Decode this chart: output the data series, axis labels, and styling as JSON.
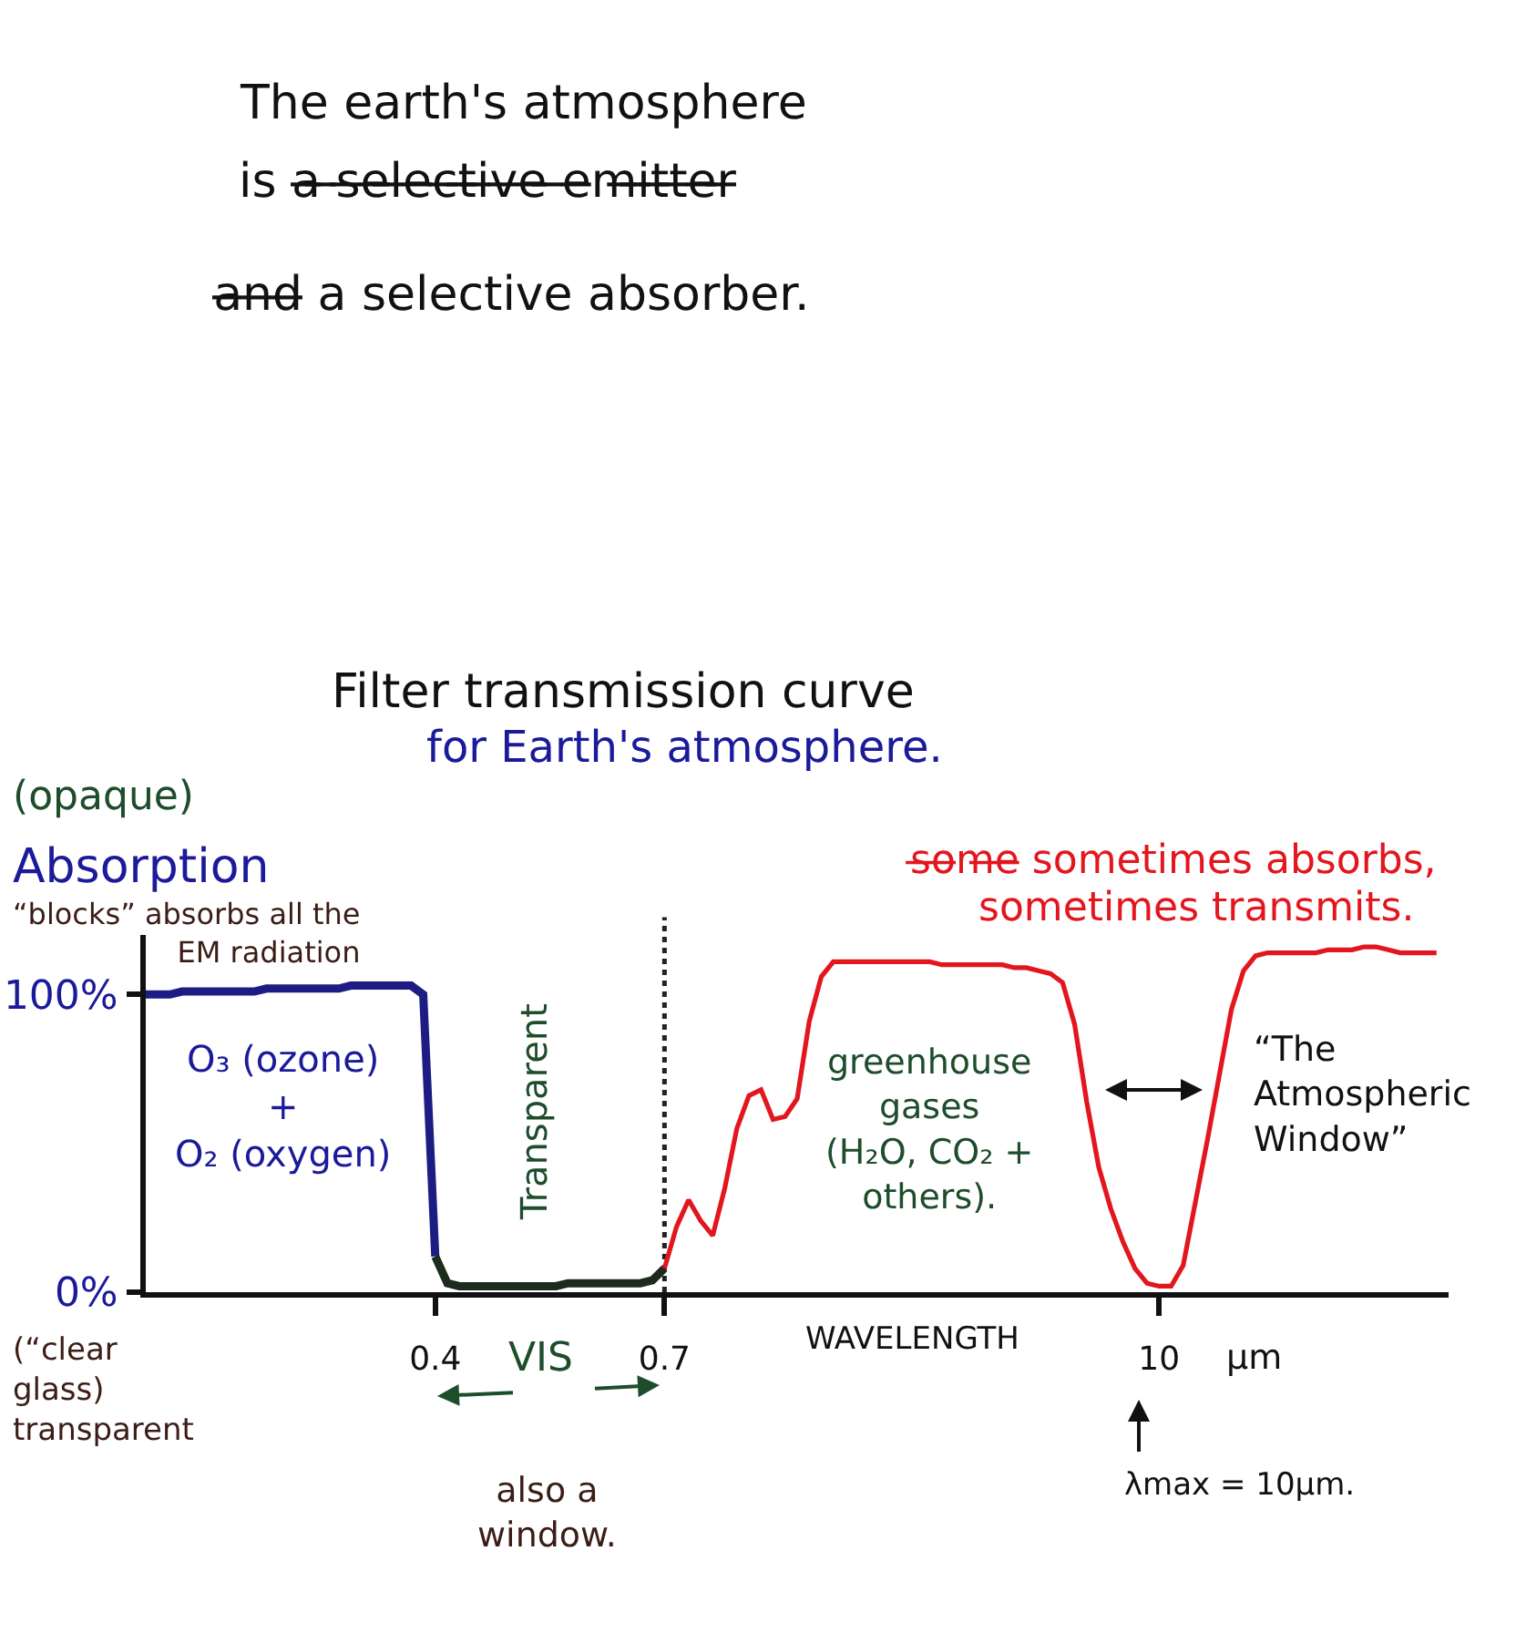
{
  "chart_data": {
    "type": "line",
    "title": "Filter transmission curve",
    "subtitle": "for Earth's atmosphere.",
    "xlabel": "WAVELENGTH",
    "ylabel": "Absorption",
    "annotations": [
      "The earth's atmosphere",
      "is a̶ ̶s̶e̶l̶e̶c̶t̶i̶v̶e̶ ̶e̶m̶i̶t̶t̶e̶r̶",
      "a̶n̶d̶ a selective absorber.",
      "(opaque)",
      "“blocks” absorbs all the\nEM radiation",
      "(“clear\nglass)\ntransparent",
      "O₃ (ozone)\n+\nO₂ (oxygen)",
      "Transparent",
      "VIS",
      "also a\nwindow.",
      "µm",
      "λmax = 10µm.",
      "s̶o̶m̶e̶ sometimes absorbs,",
      "sometimes transmits.",
      "greenhouse\ngases\n(H₂O, CO₂ +\nothers).",
      "“The\nAtmospheric\nWindow”"
    ],
    "categories": [
      null,
      null,
      null,
      null,
      null,
      null,
      null,
      null,
      null,
      null,
      null,
      null,
      null,
      null,
      null,
      null,
      null,
      null,
      null,
      null,
      null,
      null,
      null,
      null,
      "0.4",
      null,
      null,
      null,
      null,
      null,
      null,
      null,
      null,
      null,
      null,
      null,
      null,
      null,
      null,
      null,
      null,
      null,
      null,
      "0.7",
      null,
      null,
      null,
      null,
      null,
      null,
      null,
      null,
      null,
      null,
      null,
      null,
      null,
      null,
      null,
      null,
      null,
      null,
      null,
      null,
      null,
      null,
      null,
      null,
      null,
      null,
      null,
      null,
      null,
      null,
      null,
      null,
      null,
      null,
      null,
      null,
      null,
      null,
      null,
      null,
      "10",
      null,
      null,
      null,
      null,
      null,
      null,
      null,
      null,
      null,
      null,
      null,
      null,
      null,
      null,
      null,
      null,
      null,
      null,
      null,
      null,
      null,
      null,
      null
    ],
    "series": [
      {
        "color": "#1c1c84",
        "values": [
          100,
          100,
          100,
          101,
          101,
          101,
          101,
          101,
          101,
          101,
          102,
          102,
          102,
          102,
          102,
          102,
          102,
          103,
          103,
          103,
          103,
          103,
          103,
          100,
          12,
          null,
          null,
          null,
          null,
          null,
          null,
          null,
          null,
          null,
          null,
          null,
          null,
          null,
          null,
          null,
          null,
          null,
          null,
          null,
          null,
          null,
          null,
          null,
          null,
          null,
          null,
          null,
          null,
          null,
          null,
          null,
          null,
          null,
          null,
          null,
          null,
          null,
          null,
          null,
          null,
          null,
          null,
          null,
          null,
          null,
          null,
          null,
          null,
          null,
          null,
          null,
          null,
          null,
          null,
          null,
          null,
          null,
          null,
          null,
          null,
          null,
          null,
          null,
          null,
          null,
          null,
          null,
          null,
          null,
          null,
          null,
          null,
          null,
          null,
          null,
          null,
          null,
          null,
          null,
          null,
          null,
          null,
          null
        ]
      },
      {
        "color": "#1c2b1c",
        "values": [
          null,
          null,
          null,
          null,
          null,
          null,
          null,
          null,
          null,
          null,
          null,
          null,
          null,
          null,
          null,
          null,
          null,
          null,
          null,
          null,
          null,
          null,
          null,
          null,
          12,
          3,
          2,
          2,
          2,
          2,
          2,
          2,
          2,
          2,
          2,
          3,
          3,
          3,
          3,
          3,
          3,
          3,
          4,
          8,
          null,
          null,
          null,
          null,
          null,
          null,
          null,
          null,
          null,
          null,
          null,
          null,
          null,
          null,
          null,
          null,
          null,
          null,
          null,
          null,
          null,
          null,
          null,
          null,
          null,
          null,
          null,
          null,
          null,
          null,
          null,
          null,
          null,
          null,
          null,
          null,
          null,
          null,
          null,
          null,
          null,
          null,
          null,
          null,
          null,
          null,
          null,
          null,
          null,
          null,
          null,
          null,
          null,
          null,
          null,
          null,
          null,
          null,
          null,
          null,
          null,
          null,
          null,
          null
        ]
      },
      {
        "color": "#e3161e",
        "values": [
          null,
          null,
          null,
          null,
          null,
          null,
          null,
          null,
          null,
          null,
          null,
          null,
          null,
          null,
          null,
          null,
          null,
          null,
          null,
          null,
          null,
          null,
          null,
          null,
          null,
          null,
          null,
          null,
          null,
          null,
          null,
          null,
          null,
          null,
          null,
          null,
          null,
          null,
          null,
          null,
          null,
          null,
          null,
          8,
          22,
          31,
          24,
          19,
          35,
          55,
          66,
          68,
          58,
          59,
          65,
          91,
          106,
          111,
          111,
          111,
          111,
          111,
          111,
          111,
          111,
          111,
          110,
          110,
          110,
          110,
          110,
          110,
          109,
          109,
          108,
          107,
          104,
          90,
          64,
          42,
          28,
          17,
          8,
          3,
          2,
          2,
          9,
          30,
          51,
          73,
          95,
          108,
          113,
          114,
          114,
          114,
          114,
          114,
          115,
          115,
          115,
          116,
          116,
          115,
          114,
          114,
          114,
          114
        ]
      }
    ],
    "ylim": [
      0,
      120
    ],
    "yticks": [
      {
        "value": 0,
        "label": "0%"
      },
      {
        "value": 100,
        "label": "100%"
      }
    ],
    "ref_lines": [
      {
        "axis": "x",
        "value": "0.7",
        "line_style": "dotted",
        "color": "#222222"
      }
    ]
  }
}
